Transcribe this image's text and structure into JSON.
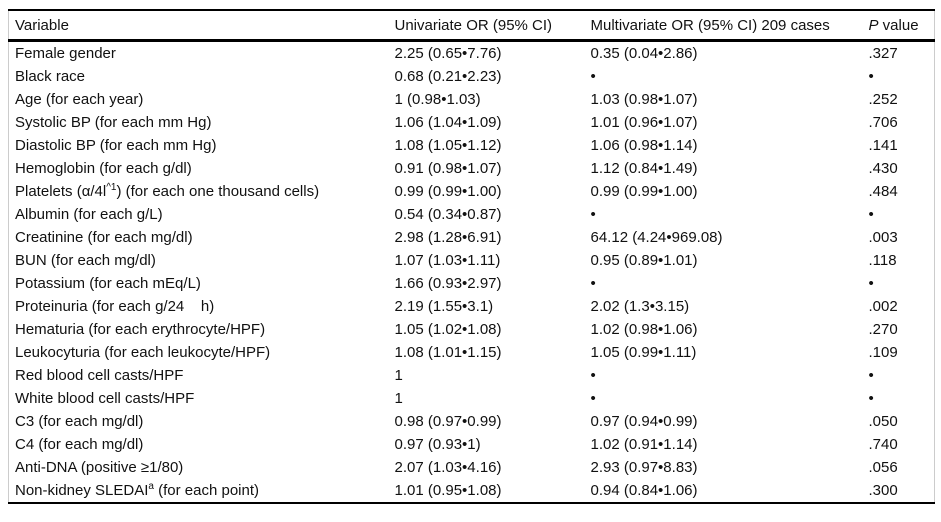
{
  "table": {
    "headers": {
      "variable": "Variable",
      "univariate": "Univariate OR (95% CI)",
      "multivariate": "Multivariate OR (95% CI) 209 cases",
      "p_italic": "P",
      "p_rest": " value"
    },
    "missing_marker": "•",
    "rows": [
      {
        "var_pre": "Female gender",
        "var_sup": "",
        "var_post": "",
        "univariate": "2.25 (0.65•7.76)",
        "multivariate": "0.35 (0.04•2.86)",
        "p": ".327"
      },
      {
        "var_pre": "Black race",
        "var_sup": "",
        "var_post": "",
        "univariate": "0.68 (0.21•2.23)",
        "multivariate": "•",
        "p": "•"
      },
      {
        "var_pre": "Age (for each year)",
        "var_sup": "",
        "var_post": "",
        "univariate": "1 (0.98•1.03)",
        "multivariate": "1.03 (0.98•1.07)",
        "p": ".252"
      },
      {
        "var_pre": "Systolic BP (for each mm Hg)",
        "var_sup": "",
        "var_post": "",
        "univariate": "1.06 (1.04•1.09)",
        "multivariate": "1.01 (0.96•1.07)",
        "p": ".706"
      },
      {
        "var_pre": "Diastolic BP (for each mm Hg)",
        "var_sup": "",
        "var_post": "",
        "univariate": "1.08 (1.05•1.12)",
        "multivariate": "1.06 (0.98•1.14)",
        "p": ".141"
      },
      {
        "var_pre": "Hemoglobin (for each g/dl)",
        "var_sup": "",
        "var_post": "",
        "univariate": "0.91 (0.98•1.07)",
        "multivariate": "1.12 (0.84•1.49)",
        "p": ".430"
      },
      {
        "var_pre": "Platelets (α/4l",
        "var_sup": "^1",
        "var_post": ") (for each one thousand cells)",
        "univariate": "0.99 (0.99•1.00)",
        "multivariate": "0.99 (0.99•1.00)",
        "p": ".484"
      },
      {
        "var_pre": "Albumin (for each g/L)",
        "var_sup": "",
        "var_post": "",
        "univariate": "0.54 (0.34•0.87)",
        "multivariate": "•",
        "p": "•"
      },
      {
        "var_pre": "Creatinine (for each mg/dl)",
        "var_sup": "",
        "var_post": "",
        "univariate": "2.98 (1.28•6.91)",
        "multivariate": "64.12 (4.24•969.08)",
        "p": ".003"
      },
      {
        "var_pre": "BUN (for each mg/dl)",
        "var_sup": "",
        "var_post": "",
        "univariate": "1.07 (1.03•1.11)",
        "multivariate": "0.95 (0.89•1.01)",
        "p": ".118"
      },
      {
        "var_pre": "Potassium (for each mEq/L)",
        "var_sup": "",
        "var_post": "",
        "univariate": "1.66 (0.93•2.97)",
        "multivariate": "•",
        "p": "•"
      },
      {
        "var_pre": "Proteinuria (for each g/24    h)",
        "var_sup": "",
        "var_post": "",
        "univariate": "2.19 (1.55•3.1)",
        "multivariate": "2.02 (1.3•3.15)",
        "p": ".002"
      },
      {
        "var_pre": "Hematuria (for each erythrocyte/HPF)",
        "var_sup": "",
        "var_post": "",
        "univariate": "1.05 (1.02•1.08)",
        "multivariate": "1.02 (0.98•1.06)",
        "p": ".270"
      },
      {
        "var_pre": "Leukocyturia (for each leukocyte/HPF)",
        "var_sup": "",
        "var_post": "",
        "univariate": "1.08 (1.01•1.15)",
        "multivariate": "1.05 (0.99•1.11)",
        "p": ".109"
      },
      {
        "var_pre": "Red blood cell casts/HPF",
        "var_sup": "",
        "var_post": "",
        "univariate": "1",
        "multivariate": "•",
        "p": "•"
      },
      {
        "var_pre": "White blood cell casts/HPF",
        "var_sup": "",
        "var_post": "",
        "univariate": "1",
        "multivariate": "•",
        "p": "•"
      },
      {
        "var_pre": "C3 (for each mg/dl)",
        "var_sup": "",
        "var_post": "",
        "univariate": "0.98 (0.97•0.99)",
        "multivariate": "0.97 (0.94•0.99)",
        "p": ".050"
      },
      {
        "var_pre": "C4 (for each mg/dl)",
        "var_sup": "",
        "var_post": "",
        "univariate": "0.97 (0.93•1)",
        "multivariate": "1.02 (0.91•1.14)",
        "p": ".740"
      },
      {
        "var_pre": "Anti-DNA (positive ≥1/80)",
        "var_sup": "",
        "var_post": "",
        "univariate": "2.07 (1.03•4.16)",
        "multivariate": "2.93 (0.97•8.83)",
        "p": ".056"
      },
      {
        "var_pre": "Non-kidney SLEDAI",
        "var_sup": "a",
        "var_post": " (for each point)",
        "univariate": "1.01 (0.95•1.08)",
        "multivariate": "0.94 (0.84•1.06)",
        "p": ".300"
      }
    ]
  }
}
